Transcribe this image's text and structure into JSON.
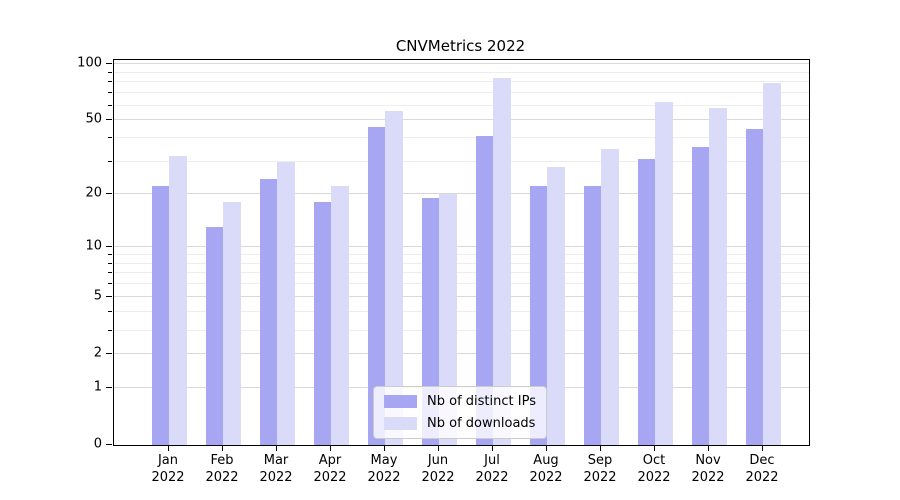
{
  "chart_data": {
    "type": "bar",
    "title": "CNVMetrics 2022",
    "categories": [
      "Jan",
      "Feb",
      "Mar",
      "Apr",
      "May",
      "Jun",
      "Jul",
      "Aug",
      "Sep",
      "Oct",
      "Nov",
      "Dec"
    ],
    "category_year": "2022",
    "series": [
      {
        "name": "Nb of distinct IPs",
        "color": "#a6a6f3",
        "values": [
          22,
          13,
          24,
          18,
          46,
          19,
          41,
          22,
          22,
          31,
          36,
          45
        ]
      },
      {
        "name": "Nb of downloads",
        "color": "#dadaf9",
        "values": [
          32,
          18,
          30,
          22,
          56,
          20,
          84,
          28,
          35,
          63,
          58,
          79
        ]
      }
    ],
    "xlabel": "",
    "ylabel": "",
    "y_scale": "log1p",
    "ylim": [
      0,
      105
    ],
    "y_major_ticks": [
      100,
      50,
      20,
      10,
      5,
      2,
      1,
      0
    ],
    "y_minor_ticks": [
      3,
      4,
      6,
      7,
      8,
      9,
      30,
      40,
      60,
      70,
      80,
      90
    ],
    "grid": "horizontal",
    "legend_position": "lower center",
    "legend_border_color": "#cccccc"
  }
}
